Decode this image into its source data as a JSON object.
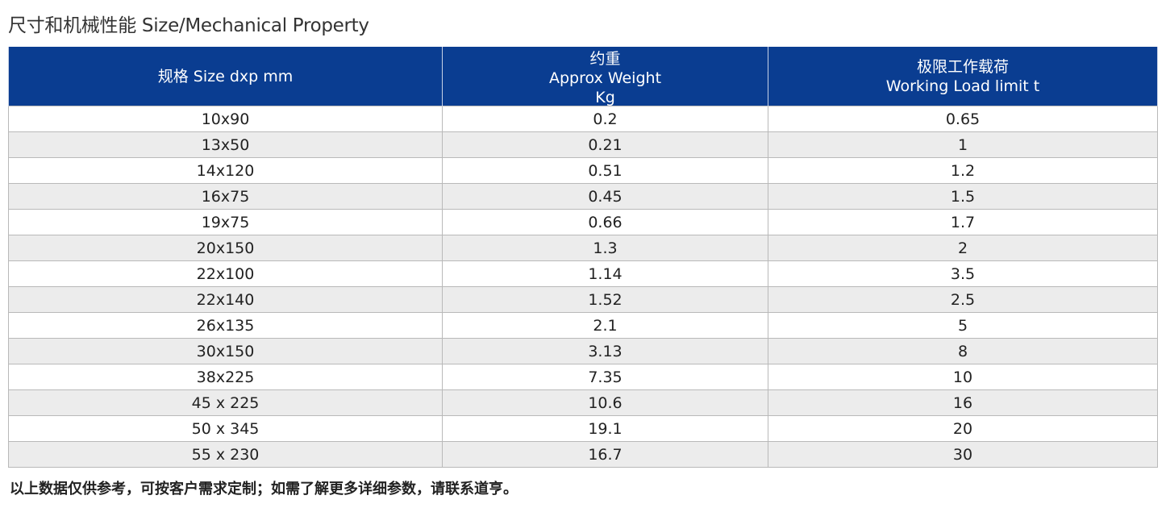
{
  "title": "尺寸和机械性能 Size/Mechanical Property",
  "table": {
    "headers": {
      "size": "规格 Size dxp mm",
      "weight_cn": "约重",
      "weight_en": "Approx Weight",
      "weight_unit": "Kg",
      "load_cn": "极限工作载荷",
      "load_en": "Working Load limit t"
    },
    "rows": [
      {
        "size": "10x90",
        "weight": "0.2",
        "load": "0.65"
      },
      {
        "size": "13x50",
        "weight": "0.21",
        "load": "1"
      },
      {
        "size": "14x120",
        "weight": "0.51",
        "load": "1.2"
      },
      {
        "size": "16x75",
        "weight": "0.45",
        "load": "1.5"
      },
      {
        "size": "19x75",
        "weight": "0.66",
        "load": "1.7"
      },
      {
        "size": "20x150",
        "weight": "1.3",
        "load": "2"
      },
      {
        "size": "22x100",
        "weight": "1.14",
        "load": "3.5"
      },
      {
        "size": "22x140",
        "weight": "1.52",
        "load": "2.5"
      },
      {
        "size": "26x135",
        "weight": "2.1",
        "load": "5"
      },
      {
        "size": "30x150",
        "weight": "3.13",
        "load": "8"
      },
      {
        "size": "38x225",
        "weight": "7.35",
        "load": "10"
      },
      {
        "size": "45 x 225",
        "weight": "10.6",
        "load": "16"
      },
      {
        "size": "50 x 345",
        "weight": "19.1",
        "load": "20"
      },
      {
        "size": "55 x 230",
        "weight": "16.7",
        "load": "30"
      }
    ]
  },
  "note": "以上数据仅供参考，可按客户需求定制；如需了解更多详细参数，请联系道亨。",
  "colors": {
    "header_bg": "#0a3d91",
    "header_text": "#ffffff",
    "row_alt": "#ececec"
  }
}
